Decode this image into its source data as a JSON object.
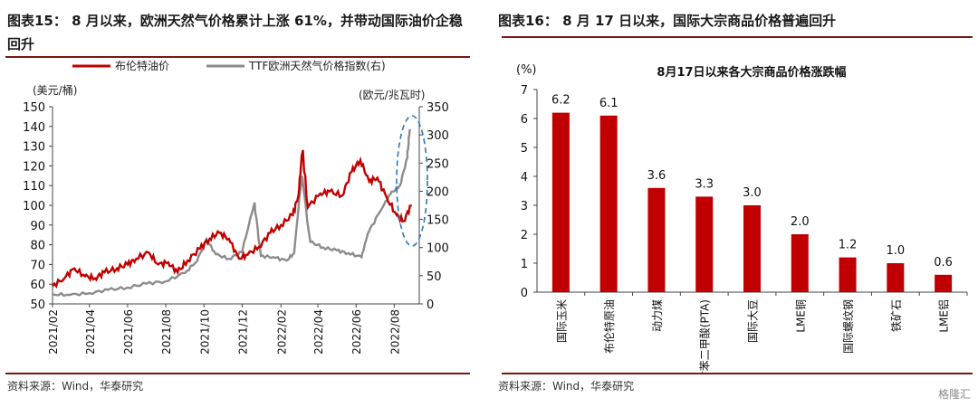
{
  "left": {
    "title": "图表15：   8 月以来，欧洲天然气价格累计上涨 61%，并带动国际油价企稳回升",
    "source": "资料来源：Wind，华泰研究",
    "chart_data": {
      "type": "line",
      "y_left_unit": "(美元/桶)",
      "y_right_unit": "(欧元/兆瓦时)",
      "ylim_left": [
        50,
        150
      ],
      "ylim_right": [
        0,
        350
      ],
      "y_left_ticks": [
        "50",
        "60",
        "70",
        "80",
        "90",
        "100",
        "110",
        "120",
        "130",
        "140",
        "150"
      ],
      "y_right_ticks": [
        "0",
        "50",
        "100",
        "150",
        "200",
        "250",
        "300",
        "350"
      ],
      "x_ticks": [
        "2021/02",
        "2021/04",
        "2021/06",
        "2021/08",
        "2021/10",
        "2021/12",
        "2022/02",
        "2022/04",
        "2022/06",
        "2022/08"
      ],
      "series": [
        {
          "name": "布伦特油价",
          "axis": "left",
          "color": "#c00000",
          "points": [
            [
              "2021-02-01",
              59
            ],
            [
              "2021-02-20",
              63
            ],
            [
              "2021-03-08",
              68
            ],
            [
              "2021-03-25",
              64
            ],
            [
              "2021-04-10",
              63
            ],
            [
              "2021-04-25",
              66
            ],
            [
              "2021-05-15",
              68
            ],
            [
              "2021-06-01",
              70
            ],
            [
              "2021-06-15",
              73
            ],
            [
              "2021-07-05",
              76
            ],
            [
              "2021-07-20",
              70
            ],
            [
              "2021-08-05",
              71
            ],
            [
              "2021-08-20",
              66
            ],
            [
              "2021-09-05",
              72
            ],
            [
              "2021-09-25",
              78
            ],
            [
              "2021-10-10",
              83
            ],
            [
              "2021-10-26",
              86
            ],
            [
              "2021-11-10",
              83
            ],
            [
              "2021-11-26",
              73
            ],
            [
              "2021-12-10",
              75
            ],
            [
              "2021-12-28",
              79
            ],
            [
              "2022-01-15",
              86
            ],
            [
              "2022-02-01",
              90
            ],
            [
              "2022-02-20",
              95
            ],
            [
              "2022-03-01",
              105
            ],
            [
              "2022-03-08",
              128
            ],
            [
              "2022-03-16",
              99
            ],
            [
              "2022-04-05",
              106
            ],
            [
              "2022-04-20",
              107
            ],
            [
              "2022-05-10",
              105
            ],
            [
              "2022-05-25",
              117
            ],
            [
              "2022-06-08",
              123
            ],
            [
              "2022-06-22",
              112
            ],
            [
              "2022-07-05",
              114
            ],
            [
              "2022-07-20",
              104
            ],
            [
              "2022-08-05",
              95
            ],
            [
              "2022-08-16",
              92
            ],
            [
              "2022-08-29",
              100
            ]
          ]
        },
        {
          "name": "TTF欧洲天然气价格指数(右)",
          "axis": "right",
          "color": "#8c8c8c",
          "points": [
            [
              "2021-02-01",
              17
            ],
            [
              "2021-03-01",
              16
            ],
            [
              "2021-04-01",
              19
            ],
            [
              "2021-05-01",
              25
            ],
            [
              "2021-06-01",
              29
            ],
            [
              "2021-07-01",
              36
            ],
            [
              "2021-08-01",
              40
            ],
            [
              "2021-09-01",
              55
            ],
            [
              "2021-09-20",
              76
            ],
            [
              "2021-10-05",
              115
            ],
            [
              "2021-10-20",
              88
            ],
            [
              "2021-11-10",
              80
            ],
            [
              "2021-12-01",
              92
            ],
            [
              "2021-12-21",
              180
            ],
            [
              "2021-12-31",
              85
            ],
            [
              "2022-01-20",
              83
            ],
            [
              "2022-02-10",
              77
            ],
            [
              "2022-02-22",
              90
            ],
            [
              "2022-03-07",
              227
            ],
            [
              "2022-03-20",
              110
            ],
            [
              "2022-04-10",
              100
            ],
            [
              "2022-05-01",
              95
            ],
            [
              "2022-05-20",
              90
            ],
            [
              "2022-06-10",
              83
            ],
            [
              "2022-06-20",
              125
            ],
            [
              "2022-07-10",
              165
            ],
            [
              "2022-07-26",
              195
            ],
            [
              "2022-08-10",
              210
            ],
            [
              "2022-08-22",
              260
            ],
            [
              "2022-08-26",
              310
            ]
          ]
        }
      ],
      "annotation": "dashed-ellipse-august-2022"
    }
  },
  "right": {
    "title": "图表16：   8 月 17 日以来，国际大宗商品价格普遍回升",
    "source": "资料来源：Wind，华泰研究",
    "chart_data": {
      "type": "bar",
      "title": "8月17日以来各大宗商品价格涨跌幅",
      "ylabel": "(%)",
      "ylim": [
        0,
        7
      ],
      "y_ticks": [
        "0",
        "1",
        "2",
        "3",
        "4",
        "5",
        "6",
        "7"
      ],
      "categories": [
        "国际玉米",
        "布伦特原油",
        "动力煤",
        "对苯二甲酸(PTA)",
        "国际大豆",
        "LME铜",
        "国际螺纹钢",
        "铁矿石",
        "LME铝"
      ],
      "values": [
        6.2,
        6.1,
        3.6,
        3.3,
        3.0,
        2.0,
        1.2,
        1.0,
        0.6
      ],
      "value_labels": [
        "6.2",
        "6.1",
        "3.6",
        "3.3",
        "3.0",
        "2.0",
        "1.2",
        "1.0",
        "0.6"
      ],
      "bar_color": "#c00000"
    }
  },
  "watermark": "格隆汇"
}
